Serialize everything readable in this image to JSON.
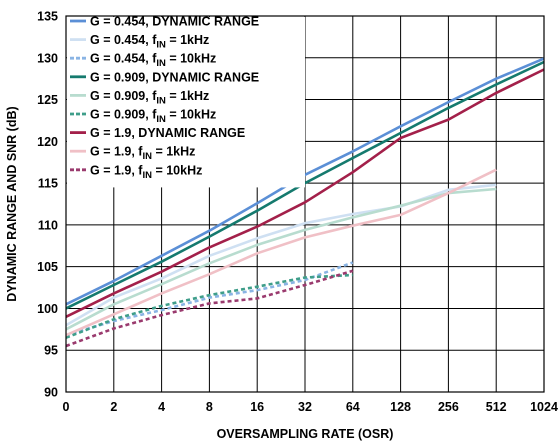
{
  "chart_data": {
    "type": "line",
    "xlabel": "OVERSAMPLING RATE (OSR)",
    "ylabel": "DYNAMIC RANGE AND SNR (dB)",
    "x_ticks": [
      "0",
      "2",
      "4",
      "8",
      "16",
      "32",
      "64",
      "128",
      "256",
      "512",
      "1024"
    ],
    "ylim": [
      90,
      135
    ],
    "y_ticks": [
      "90",
      "95",
      "100",
      "105",
      "110",
      "115",
      "120",
      "125",
      "130",
      "135"
    ],
    "grid": true,
    "legend_position": "top-left",
    "series": [
      {
        "name": "G = 0.454, DYNAMIC RANGE",
        "label_main": "G = 0.454, DYNAMIC RANGE",
        "label_sub": "",
        "label_tail": "",
        "color": "#5b8fd6",
        "dash": "solid",
        "x": [
          "0",
          "2",
          "4",
          "8",
          "16",
          "32",
          "64",
          "128",
          "256",
          "512",
          "1024"
        ],
        "y": [
          100.5,
          103.3,
          106.3,
          109.3,
          112.6,
          116.0,
          118.8,
          121.8,
          124.7,
          127.5,
          129.9
        ]
      },
      {
        "name": "G = 0.454, fIN = 1kHz",
        "label_main": "G = 0.454, f",
        "label_sub": "IN",
        "label_tail": " = 1kHz",
        "color": "#cfe0f2",
        "dash": "solid",
        "x": [
          "0",
          "2",
          "4",
          "8",
          "16",
          "32",
          "64",
          "128",
          "256",
          "512"
        ],
        "y": [
          98.0,
          101.3,
          103.6,
          106.3,
          108.4,
          110.2,
          111.3,
          112.2,
          114.2,
          114.8
        ]
      },
      {
        "name": "G = 0.454, fIN = 10kHz",
        "label_main": "G = 0.454, f",
        "label_sub": "IN",
        "label_tail": " = 10kHz",
        "color": "#8ab4e4",
        "dash": "dash",
        "x": [
          "0",
          "2",
          "4",
          "8",
          "16",
          "32",
          "64"
        ],
        "y": [
          96.8,
          98.5,
          99.8,
          101.3,
          102.2,
          103.4,
          105.5
        ]
      },
      {
        "name": "G = 0.909, DYNAMIC RANGE",
        "label_main": "G = 0.909, DYNAMIC RANGE",
        "label_sub": "",
        "label_tail": "",
        "color": "#157a6e",
        "dash": "solid",
        "x": [
          "0",
          "2",
          "4",
          "8",
          "16",
          "32",
          "64",
          "128",
          "256",
          "512",
          "1024"
        ],
        "y": [
          100.0,
          102.8,
          105.6,
          108.6,
          111.7,
          115.0,
          118.0,
          121.0,
          124.0,
          126.8,
          129.5
        ]
      },
      {
        "name": "G = 0.909, fIN = 1kHz",
        "label_main": "G = 0.909, f",
        "label_sub": "IN",
        "label_tail": " = 1kHz",
        "color": "#b8dccf",
        "dash": "solid",
        "x": [
          "0",
          "2",
          "4",
          "8",
          "16",
          "32",
          "64",
          "128",
          "256",
          "512"
        ],
        "y": [
          97.5,
          100.5,
          102.9,
          105.4,
          107.6,
          109.4,
          110.9,
          112.3,
          113.8,
          114.3
        ]
      },
      {
        "name": "G = 0.909, fIN = 10kHz",
        "label_main": "G = 0.909, f",
        "label_sub": "IN",
        "label_tail": " = 10kHz",
        "color": "#3f9e8a",
        "dash": "dash",
        "x": [
          "0",
          "2",
          "4",
          "8",
          "16",
          "32",
          "64"
        ],
        "y": [
          96.5,
          98.7,
          100.3,
          101.6,
          102.6,
          103.7,
          104.0
        ]
      },
      {
        "name": "G = 1.9, DYNAMIC RANGE",
        "label_main": "G = 1.9, DYNAMIC RANGE",
        "label_sub": "",
        "label_tail": "",
        "color": "#a3204a",
        "dash": "solid",
        "x": [
          "0",
          "2",
          "4",
          "8",
          "16",
          "32",
          "64",
          "128",
          "256",
          "512",
          "1024"
        ],
        "y": [
          99.0,
          101.8,
          104.4,
          107.3,
          109.8,
          112.7,
          116.3,
          120.4,
          122.6,
          125.8,
          128.6
        ]
      },
      {
        "name": "G = 1.9, fIN = 1kHz",
        "label_main": "G = 1.9, f",
        "label_sub": "IN",
        "label_tail": " = 1kHz",
        "color": "#f0c0c6",
        "dash": "solid",
        "x": [
          "0",
          "2",
          "4",
          "8",
          "16",
          "32",
          "64",
          "128",
          "256",
          "512"
        ],
        "y": [
          96.8,
          99.3,
          101.8,
          104.1,
          106.6,
          108.5,
          109.9,
          111.2,
          113.8,
          116.6
        ]
      },
      {
        "name": "G = 1.9, fIN = 10kHz",
        "label_main": "G = 1.9, f",
        "label_sub": "IN",
        "label_tail": " = 10kHz",
        "color": "#9a3a6e",
        "dash": "dash",
        "x": [
          "0",
          "2",
          "4",
          "8",
          "16",
          "32",
          "64"
        ],
        "y": [
          95.5,
          97.6,
          99.2,
          100.6,
          101.2,
          102.8,
          104.5
        ]
      }
    ]
  }
}
